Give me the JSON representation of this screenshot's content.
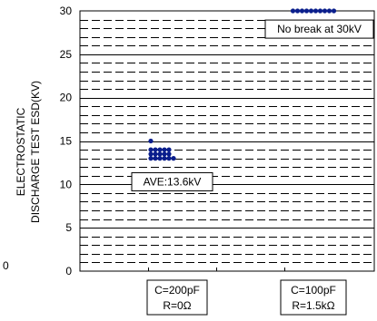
{
  "chart_data": {
    "type": "scatter",
    "title": "",
    "ylabel_lines": [
      "ELECTROSTATIC",
      "DISCHARGE TEST ESD(KV)"
    ],
    "xlabel": "",
    "ylim": [
      0,
      30
    ],
    "yticks": [
      0,
      5,
      10,
      15,
      20,
      25,
      30
    ],
    "grid": "dashed horizontal every 1 kV, solid every 5 kV",
    "categories": [
      {
        "lines": [
          "C=200pF",
          "R=0Ω"
        ]
      },
      {
        "lines": [
          "C=100pF",
          "R=1.5kΩ"
        ]
      }
    ],
    "series": [
      {
        "category_index": 0,
        "color": "#0a1e8c",
        "points": [
          {
            "y": 15,
            "count": 1
          },
          {
            "y": 14,
            "count": 5
          },
          {
            "y": 13.5,
            "count": 5
          },
          {
            "y": 13,
            "count": 6
          }
        ]
      },
      {
        "category_index": 1,
        "color": "#0a1e8c",
        "points": [
          {
            "y": 30,
            "count": 10
          }
        ]
      }
    ],
    "annotations": [
      {
        "text": "AVE:13.6kV",
        "y": 10.3,
        "category_index": 0
      },
      {
        "text": "No break at 30kV",
        "y": 27.9,
        "category_index": 1
      }
    ],
    "stray_text": "0"
  }
}
